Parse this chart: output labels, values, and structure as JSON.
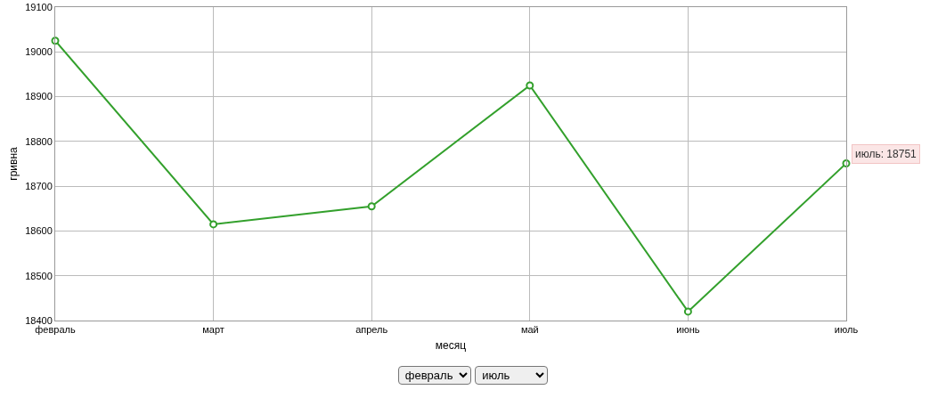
{
  "chart_data": {
    "type": "line",
    "xlabel": "месяц",
    "ylabel": "гривна",
    "categories": [
      "февраль",
      "март",
      "апрель",
      "май",
      "июнь",
      "июль"
    ],
    "values": [
      19025,
      18615,
      18655,
      18925,
      18420,
      18751
    ],
    "color": "#33a02c",
    "marker": "circle",
    "line_style": "solid",
    "grid": true,
    "ylim": [
      18400,
      19100
    ],
    "yticks": [
      18400,
      18500,
      18600,
      18700,
      18800,
      18900,
      19000,
      19100
    ],
    "annotations": [
      {
        "text": "июль: 18751",
        "x": "июль",
        "y": 18751
      }
    ]
  }
}
